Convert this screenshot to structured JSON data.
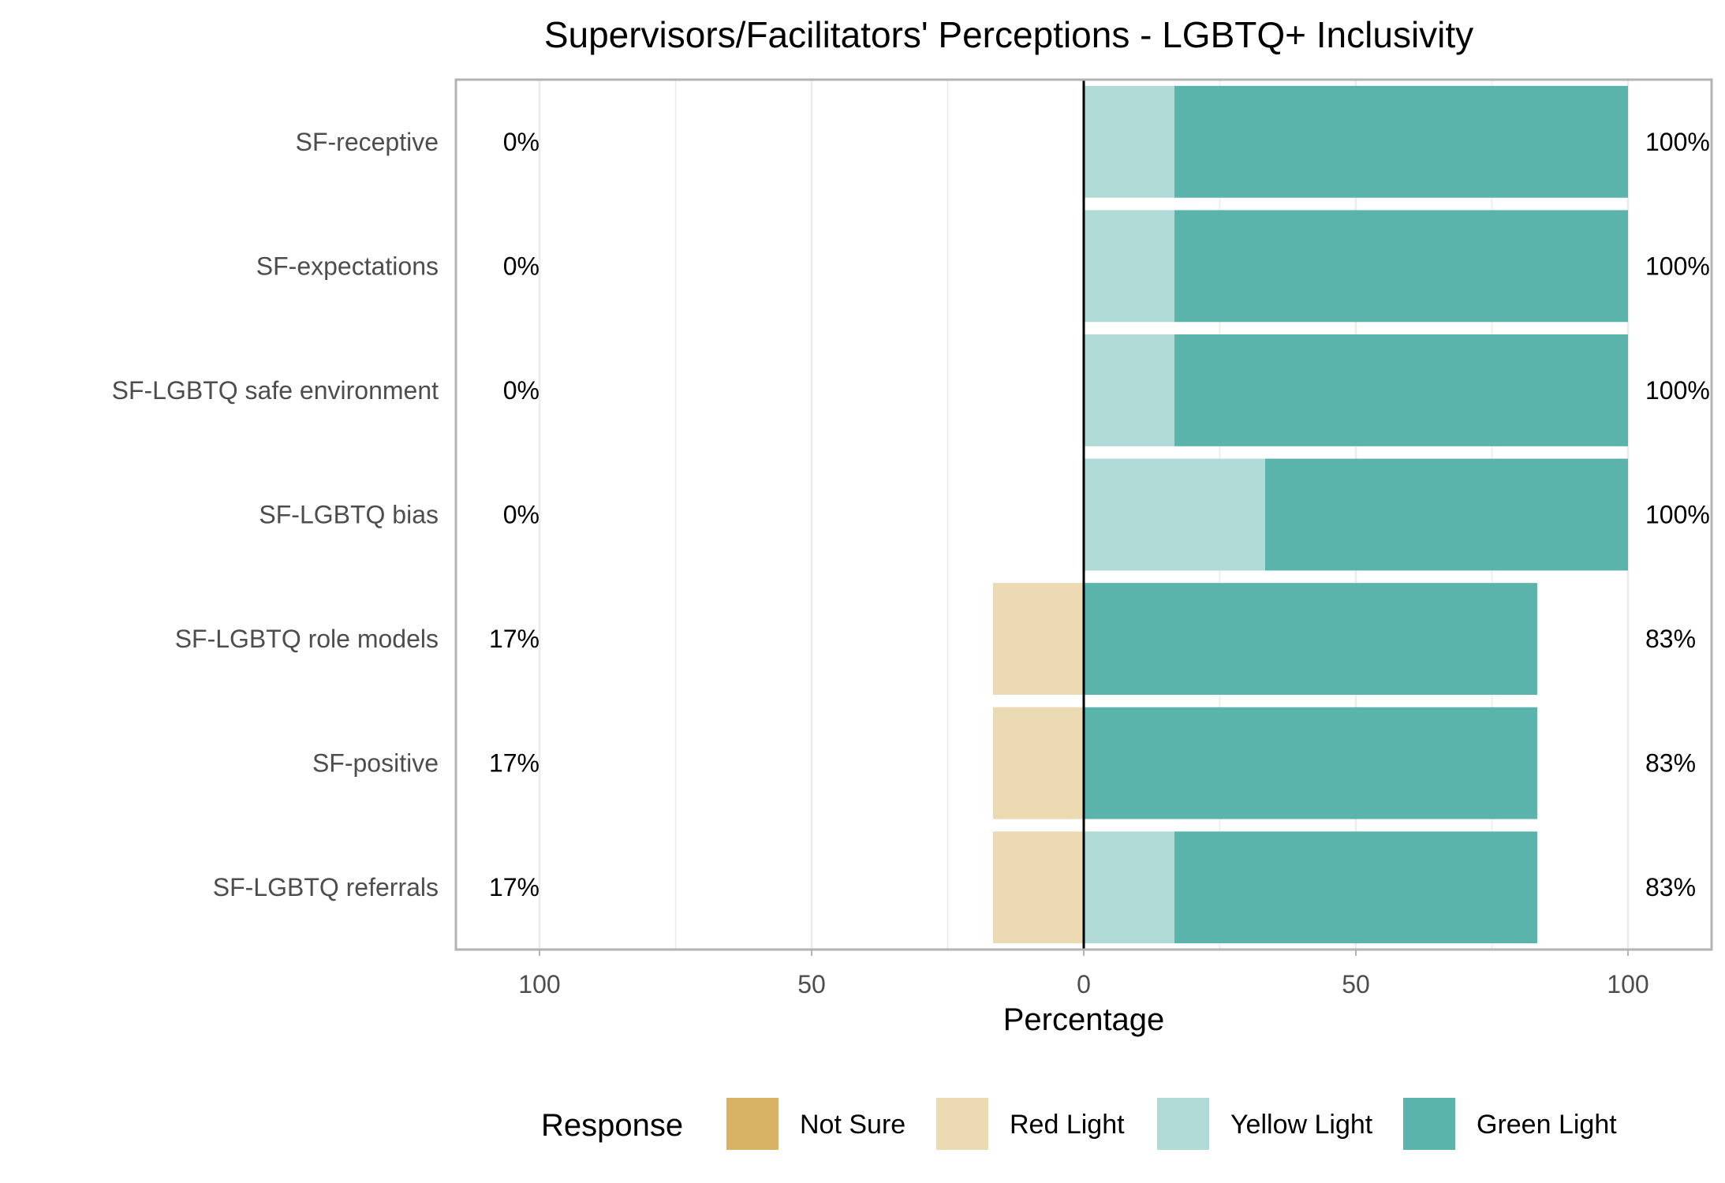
{
  "chart_data": {
    "type": "bar",
    "orientation": "horizontal",
    "stacked": "diverging",
    "title": "Supervisors/Facilitators' Perceptions - LGBTQ+ Inclusivity",
    "xlabel": "Percentage",
    "ylabel": "",
    "xlim": [
      -100,
      100
    ],
    "xticks": [
      -100,
      -50,
      0,
      50,
      100
    ],
    "xtick_labels": [
      "100",
      "50",
      "0",
      "50",
      "100"
    ],
    "grid": true,
    "categories": [
      "SF-receptive",
      "SF-expectations",
      "SF-LGBTQ safe environment",
      "SF-LGBTQ bias",
      "SF-LGBTQ role models",
      "SF-positive",
      "SF-LGBTQ referrals"
    ],
    "series": [
      {
        "name": "Not Sure",
        "color": "#D8B365",
        "side": "left",
        "values": [
          0,
          0,
          0,
          0,
          0,
          0,
          0
        ]
      },
      {
        "name": "Red Light",
        "color": "#EBDAB2",
        "side": "left",
        "values": [
          0,
          0,
          0,
          0,
          16.67,
          16.67,
          16.67
        ]
      },
      {
        "name": "Yellow Light",
        "color": "#B0DAD6",
        "side": "right",
        "values": [
          16.67,
          16.67,
          16.67,
          33.33,
          0,
          0,
          16.67
        ]
      },
      {
        "name": "Green Light",
        "color": "#5AB4AC",
        "side": "right",
        "values": [
          83.33,
          83.33,
          83.33,
          66.67,
          83.33,
          83.33,
          66.67
        ]
      }
    ],
    "left_labels": [
      "0%",
      "0%",
      "0%",
      "0%",
      "17%",
      "17%",
      "17%"
    ],
    "right_labels": [
      "100%",
      "100%",
      "100%",
      "100%",
      "83%",
      "83%",
      "83%"
    ],
    "legend": {
      "title": "Response",
      "placement": "bottom",
      "items": [
        "Not Sure",
        "Red Light",
        "Yellow Light",
        "Green Light"
      ]
    }
  }
}
